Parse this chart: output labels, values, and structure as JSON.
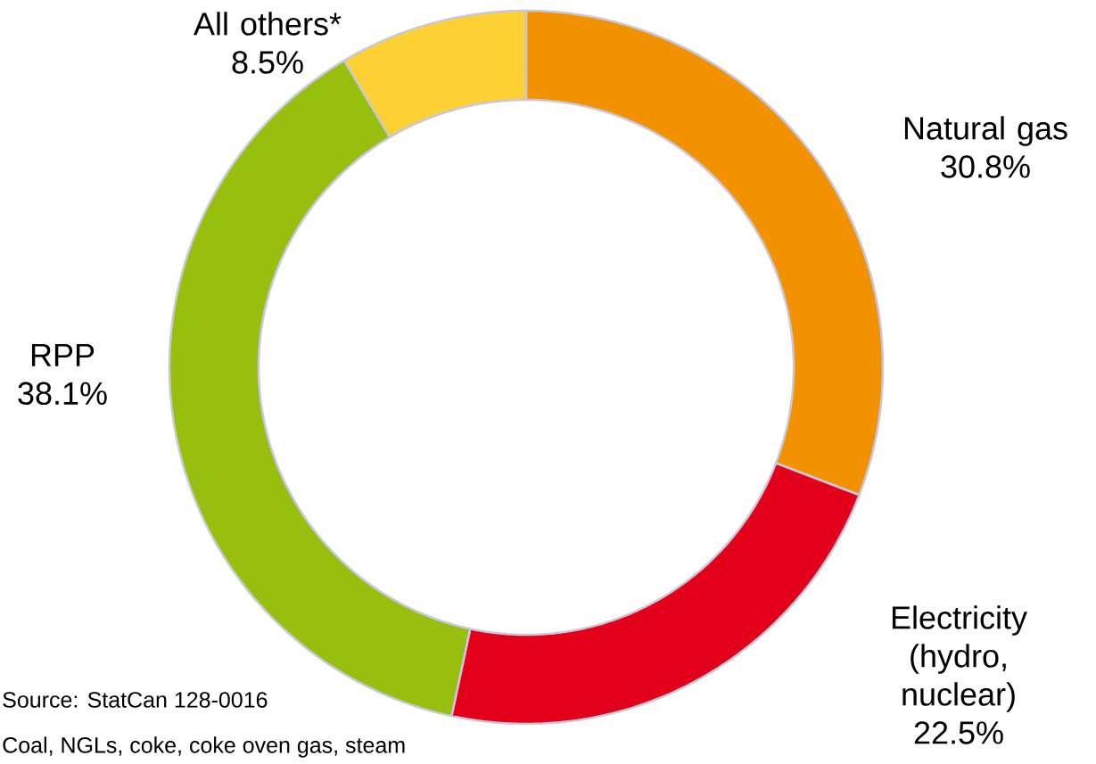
{
  "chart_data": {
    "type": "donut",
    "categories": [
      "Natural gas",
      "Electricity (hydro, nuclear)",
      "RPP",
      "All others*"
    ],
    "values": [
      30.8,
      22.5,
      38.1,
      8.5
    ],
    "colors": [
      "#f39200",
      "#e2001a",
      "#97bf0d",
      "#fdd033"
    ],
    "value_labels": [
      "30.8%",
      "22.5%",
      "38.1%",
      "8.5%"
    ],
    "annotations": [
      "Source: StatCan 128-0016",
      "Coal, NGLs, coke, coke oven gas, steam"
    ]
  }
}
